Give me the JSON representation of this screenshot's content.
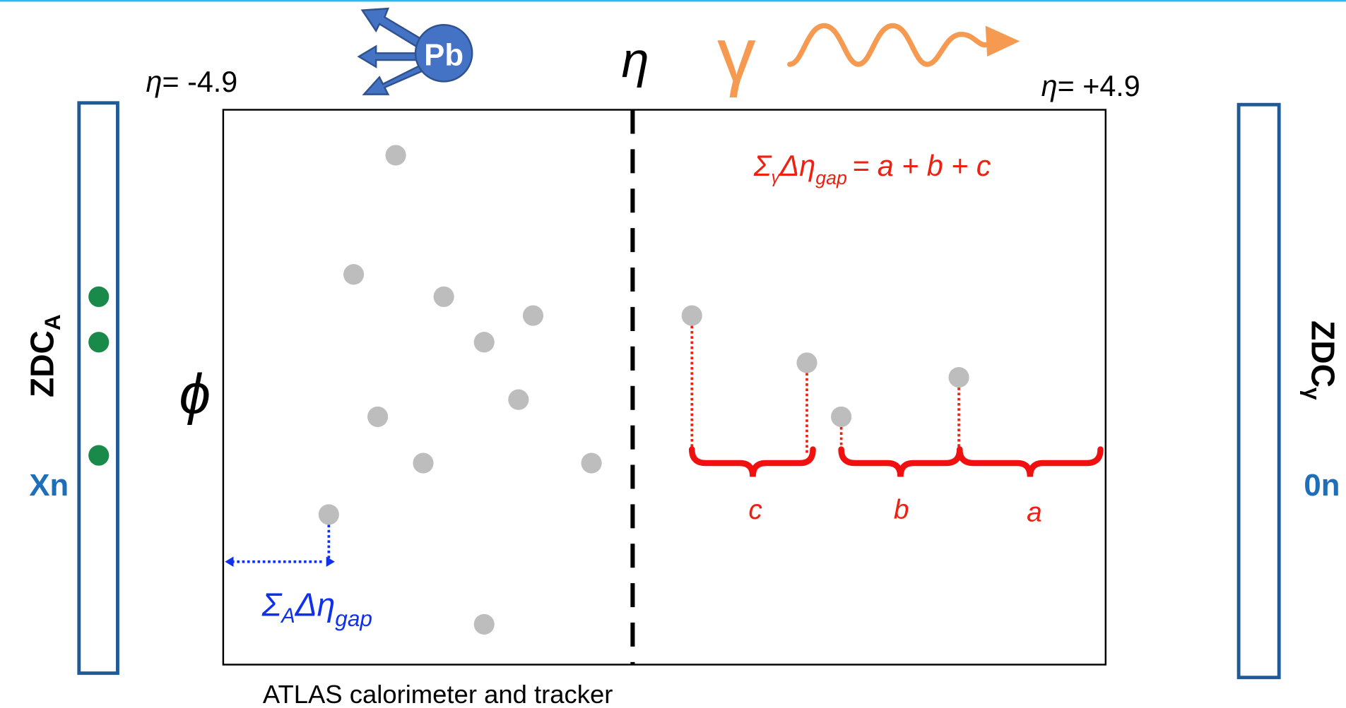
{
  "top": {
    "pb": "Pb",
    "eta": "η",
    "gamma": "γ"
  },
  "eta_left": {
    "symbol": "η",
    "value": "= -4.9"
  },
  "eta_right": {
    "symbol": "η",
    "value": "= +4.9"
  },
  "phi": "ϕ",
  "zdc_left": {
    "name": "ZDC",
    "sub": "A",
    "state": "Xn"
  },
  "zdc_right": {
    "name": "ZDC",
    "sub": "γ",
    "state": "0n"
  },
  "formula_gamma": {
    "sigma": "Σ",
    "sub": "γ",
    "delta": "Δη",
    "gap": "gap",
    "rhs": "= a + b + c"
  },
  "formula_a": {
    "sigma": "Σ",
    "sub": "A",
    "delta": "Δη",
    "gap": "gap"
  },
  "braces": [
    "c",
    "b",
    "a"
  ],
  "caption": "ATLAS calorimeter and tracker"
}
